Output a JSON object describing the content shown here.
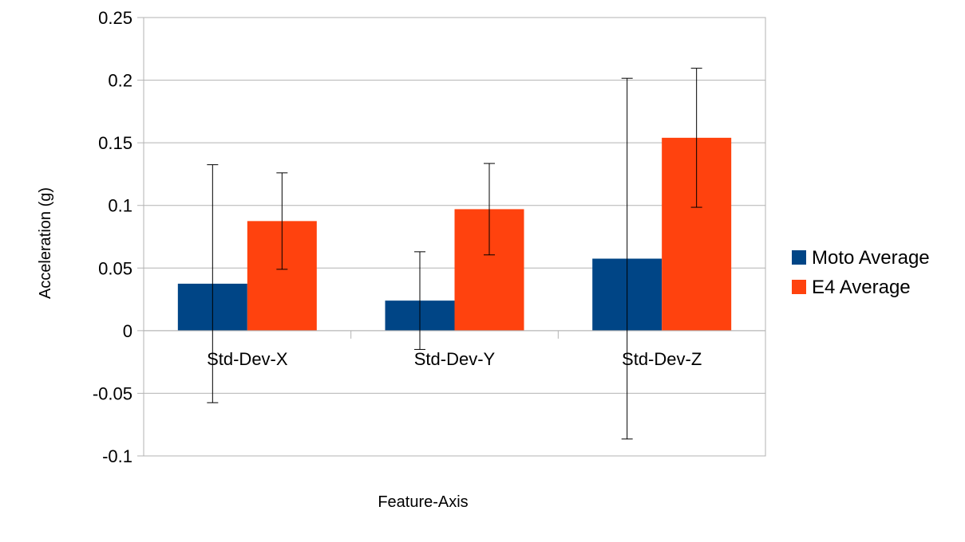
{
  "chart_data": {
    "type": "bar",
    "title": "",
    "xlabel": "Feature-Axis",
    "ylabel": "Acceleration (g)",
    "categories": [
      "Std-Dev-X",
      "Std-Dev-Y",
      "Std-Dev-Z"
    ],
    "series": [
      {
        "name": "Moto Average",
        "color": "#004586",
        "values": [
          0.0375,
          0.024,
          0.0575
        ],
        "error": [
          0.095,
          0.039,
          0.144
        ]
      },
      {
        "name": "E4 Average",
        "color": "#ff420e",
        "values": [
          0.0875,
          0.097,
          0.154
        ],
        "error": [
          0.0385,
          0.0365,
          0.0555
        ]
      }
    ],
    "ylim": [
      -0.1,
      0.25
    ],
    "yticks": [
      -0.1,
      -0.05,
      0,
      0.05,
      0.1,
      0.15,
      0.2,
      0.25
    ],
    "ytick_labels": [
      "-0.1",
      "-0.05",
      "0",
      "0.05",
      "0.1",
      "0.15",
      "0.2",
      "0.25"
    ],
    "grid": true,
    "legend_position": "right",
    "error_bars": true
  }
}
